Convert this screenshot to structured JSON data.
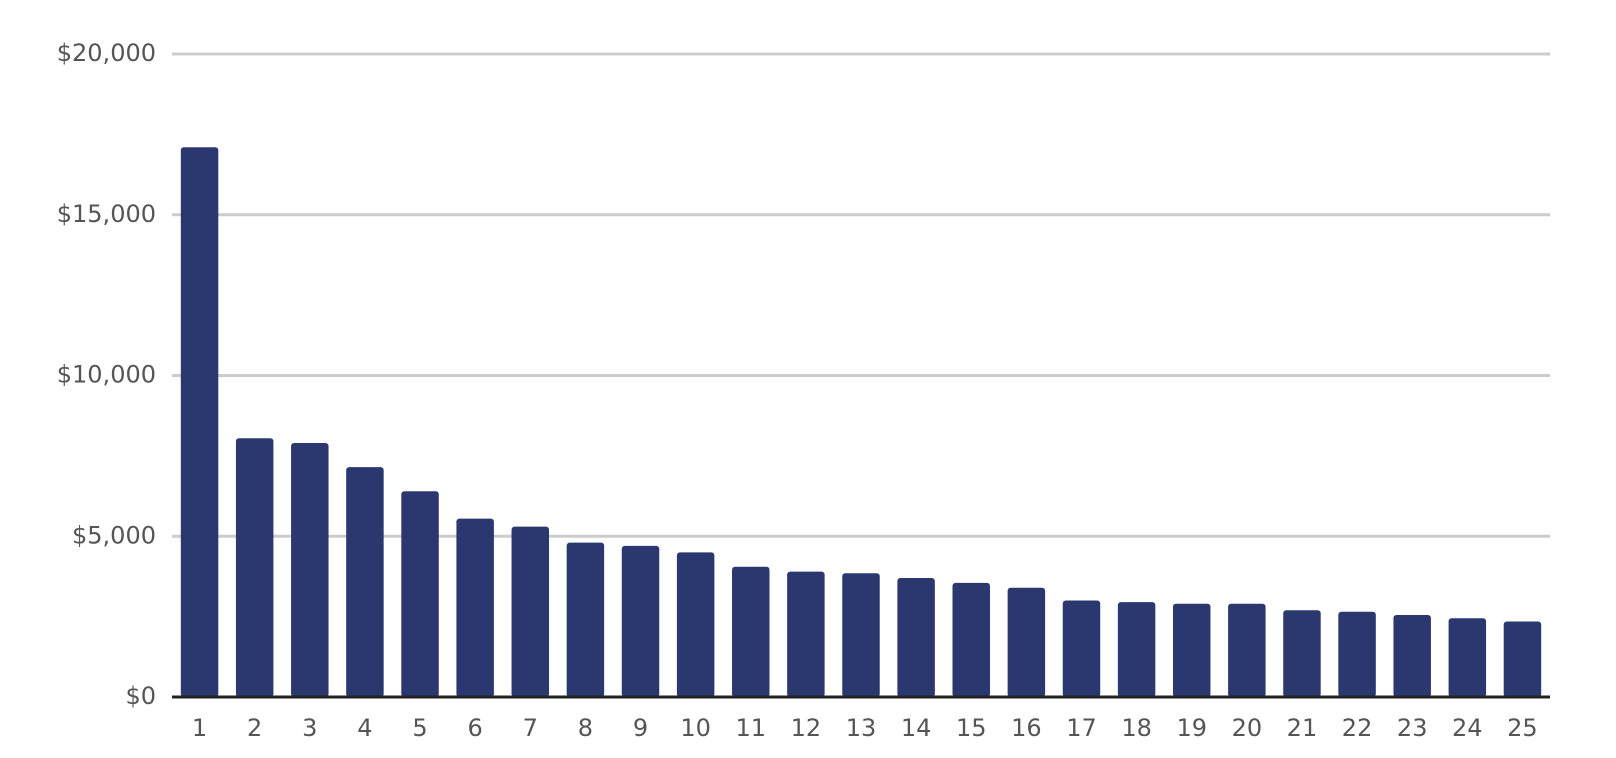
{
  "chart_data": {
    "type": "bar",
    "categories": [
      "1",
      "2",
      "3",
      "4",
      "5",
      "6",
      "7",
      "8",
      "9",
      "10",
      "11",
      "12",
      "13",
      "14",
      "15",
      "16",
      "17",
      "18",
      "19",
      "20",
      "21",
      "22",
      "23",
      "24",
      "25"
    ],
    "values": [
      17100,
      8050,
      7900,
      7150,
      6400,
      5550,
      5300,
      4800,
      4700,
      4500,
      4050,
      3900,
      3850,
      3700,
      3550,
      3400,
      3000,
      2950,
      2900,
      2900,
      2700,
      2650,
      2550,
      2450,
      2350
    ],
    "color": "#2b3870",
    "ylim": [
      0,
      20000
    ],
    "yticks": [
      {
        "value": 0,
        "label": "$0"
      },
      {
        "value": 5000,
        "label": "$5,000"
      },
      {
        "value": 10000,
        "label": "$10,000"
      },
      {
        "value": 15000,
        "label": "$15,000"
      },
      {
        "value": 20000,
        "label": "$20,000"
      }
    ],
    "grid": true
  }
}
